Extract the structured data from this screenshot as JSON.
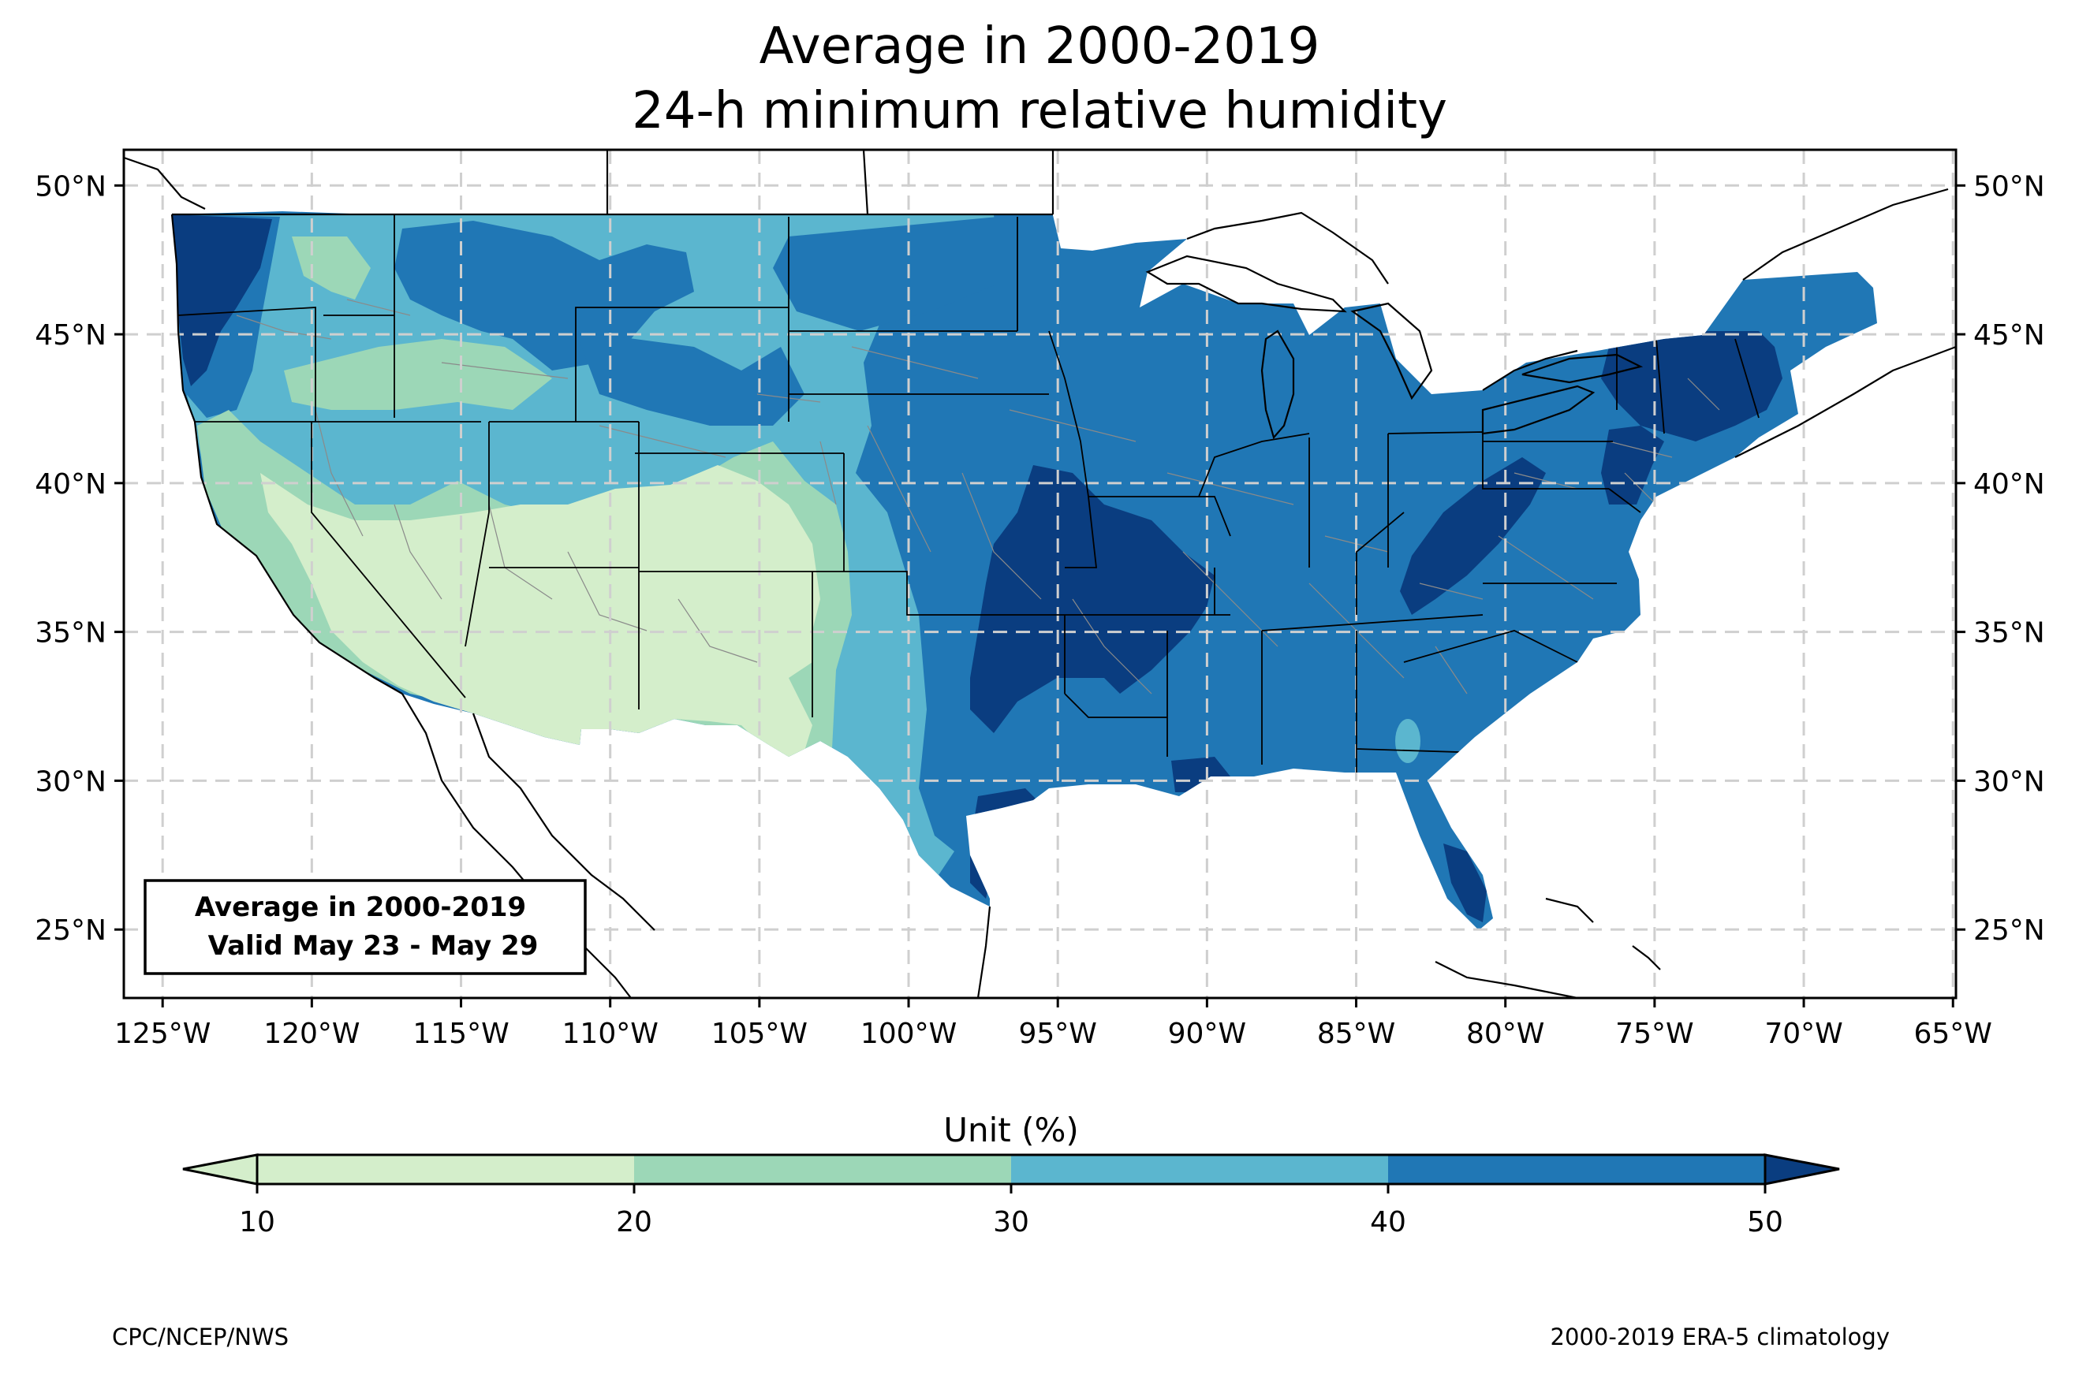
{
  "title": {
    "line1": "Average in 2000-2019",
    "line2": "24-h minimum relative humidity"
  },
  "map": {
    "lon_range": [
      -126.3,
      -64.9
    ],
    "lat_range": [
      22.7,
      51.2
    ],
    "lon_ticks": [
      {
        "value": -125,
        "label": "125°W"
      },
      {
        "value": -120,
        "label": "120°W"
      },
      {
        "value": -115,
        "label": "115°W"
      },
      {
        "value": -110,
        "label": "110°W"
      },
      {
        "value": -105,
        "label": "105°W"
      },
      {
        "value": -100,
        "label": "100°W"
      },
      {
        "value": -95,
        "label": "95°W"
      },
      {
        "value": -90,
        "label": "90°W"
      },
      {
        "value": -85,
        "label": "85°W"
      },
      {
        "value": -80,
        "label": "80°W"
      },
      {
        "value": -75,
        "label": "75°W"
      },
      {
        "value": -70,
        "label": "70°W"
      },
      {
        "value": -65,
        "label": "65°W"
      }
    ],
    "lat_ticks": [
      {
        "value": 25,
        "label": "25°N"
      },
      {
        "value": 30,
        "label": "30°N"
      },
      {
        "value": 35,
        "label": "35°N"
      },
      {
        "value": 40,
        "label": "40°N"
      },
      {
        "value": 45,
        "label": "45°N"
      },
      {
        "value": 50,
        "label": "50°N"
      }
    ],
    "gridlines": true
  },
  "legend_box": {
    "line1": "Average in 2000-2019",
    "line2": "Valid May 23 - May 29",
    "placement": "bottom-left"
  },
  "colorbar": {
    "label": "Unit (%)",
    "ticks": [
      "10",
      "20",
      "30",
      "40",
      "50"
    ],
    "colors": [
      "#d4eecb",
      "#9cd7b7",
      "#5bb6cf",
      "#2077b5",
      "#0a3d80"
    ],
    "extend": "both"
  },
  "credits": {
    "left": "CPC/NCEP/NWS",
    "right": "2000-2019 ERA-5 climatology"
  },
  "colors": {
    "c10": "#d4eecb",
    "c20": "#9cd7b7",
    "c30": "#5bb6cf",
    "c40": "#2077b5",
    "c50": "#0a3d80"
  }
}
